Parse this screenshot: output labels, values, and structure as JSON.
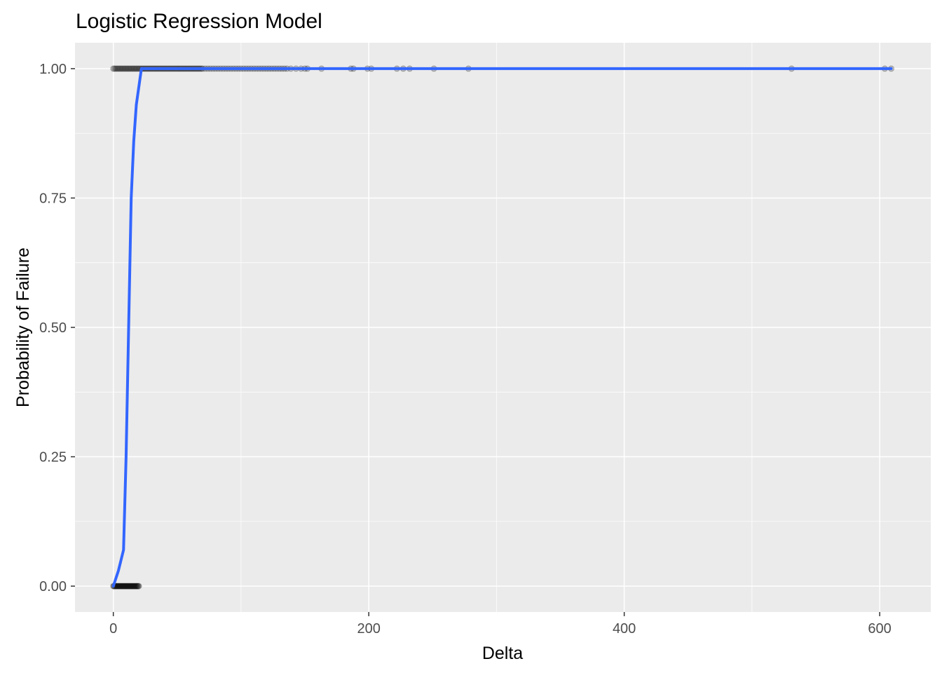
{
  "chart_data": {
    "type": "scatter",
    "title": "Logistic Regression Model",
    "xlabel": "Delta",
    "ylabel": "Probability of Failure",
    "xlim": [
      -30,
      640
    ],
    "ylim": [
      -0.05,
      1.05
    ],
    "x_ticks": [
      0,
      200,
      400,
      600
    ],
    "x_tick_labels": [
      "0",
      "200",
      "400",
      "600"
    ],
    "y_ticks": [
      0,
      0.25,
      0.5,
      0.75,
      1.0
    ],
    "y_tick_labels": [
      "0.00",
      "0.25",
      "0.50",
      "0.75",
      "1.00"
    ],
    "grid": true,
    "legend": "none",
    "series": [
      {
        "kind": "points",
        "color": "#000000",
        "y": 0,
        "x": [
          0,
          0.5,
          1,
          1.5,
          2,
          2.5,
          3,
          3.5,
          4,
          4.5,
          5,
          5.5,
          6,
          6.5,
          7,
          7.5,
          8,
          8.5,
          9,
          9.5,
          10,
          10.5,
          11,
          11.5,
          12,
          12.5,
          13,
          13.5,
          14,
          14.5,
          15,
          15.5,
          16,
          16.5,
          17,
          17.5,
          18,
          18.5,
          19,
          19.5,
          20
        ]
      },
      {
        "kind": "points",
        "color": "#000000",
        "y": 1,
        "x": [
          0,
          1,
          2,
          3,
          4,
          5,
          6,
          7,
          8,
          9,
          10,
          11,
          12,
          13,
          14,
          15,
          16,
          17,
          18,
          19,
          20,
          21,
          22,
          23,
          24,
          25,
          26,
          27,
          28,
          29,
          30,
          31,
          32,
          33,
          34,
          35,
          36,
          37,
          38,
          39,
          40,
          41,
          42,
          43,
          44,
          45,
          46,
          47,
          48,
          49,
          50,
          51,
          52,
          53,
          54,
          55,
          56,
          57,
          58,
          59,
          60,
          61,
          62,
          63,
          64,
          65,
          66,
          67,
          68,
          69,
          70,
          72,
          74,
          76,
          78,
          80,
          82,
          84,
          86,
          88,
          90,
          92,
          94,
          96,
          98,
          100,
          102,
          104,
          106,
          108,
          110,
          112,
          114,
          116,
          118,
          120,
          122,
          124,
          126,
          128,
          130,
          132,
          134,
          136,
          139,
          143,
          147,
          150,
          152,
          163,
          186,
          188,
          199,
          202,
          222,
          227,
          232,
          251,
          278,
          531,
          604,
          609
        ]
      },
      {
        "kind": "line",
        "color": "#3366ff",
        "x": [
          0,
          4,
          8,
          10,
          12,
          14,
          16,
          18,
          22,
          30,
          609
        ],
        "y": [
          0.0,
          0.03,
          0.07,
          0.25,
          0.5,
          0.75,
          0.86,
          0.93,
          1.0,
          1.0,
          1.0
        ]
      }
    ]
  }
}
